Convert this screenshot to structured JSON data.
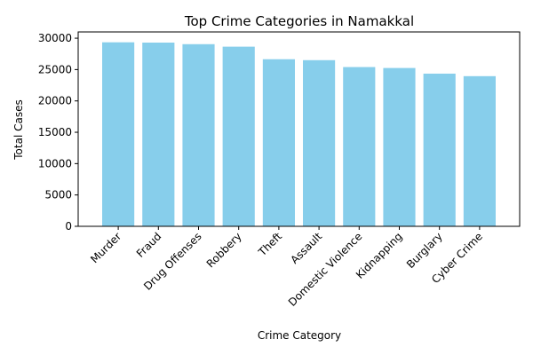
{
  "chart_data": {
    "type": "bar",
    "title": "Top Crime Categories in Namakkal",
    "xlabel": "Crime Category",
    "ylabel": "Total Cases",
    "categories": [
      "Murder",
      "Fraud",
      "Drug Offenses",
      "Robbery",
      "Theft",
      "Assault",
      "Domestic Violence",
      "Kidnapping",
      "Burglary",
      "Cyber Crime"
    ],
    "values": [
      29350,
      29300,
      29050,
      28650,
      26650,
      26500,
      25400,
      25250,
      24350,
      23950
    ],
    "ylim": [
      0,
      31000
    ],
    "yticks": [
      0,
      5000,
      10000,
      15000,
      20000,
      25000,
      30000
    ],
    "bar_color": "#87ceeb",
    "grid": false,
    "legend": "none"
  }
}
